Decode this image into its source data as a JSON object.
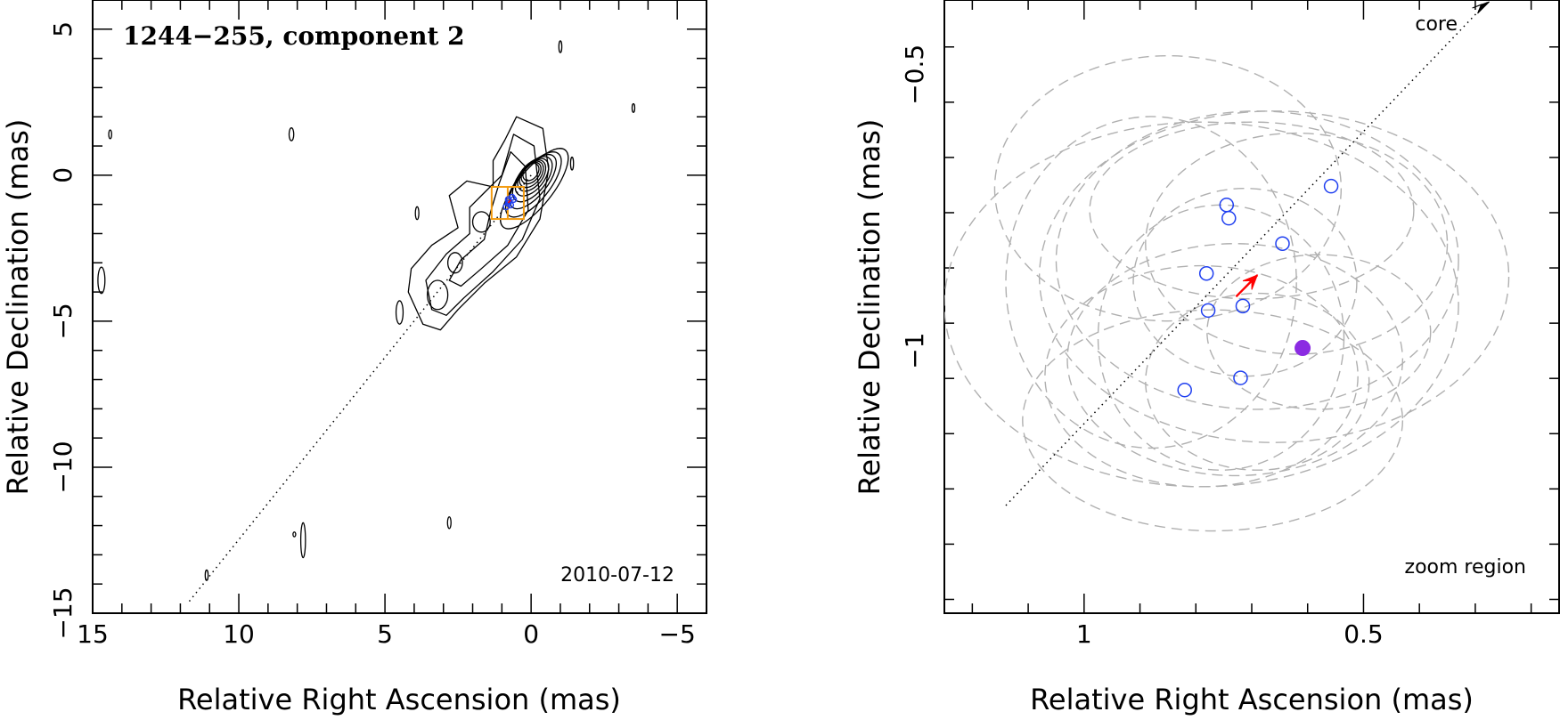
{
  "colors": {
    "contour": "#000000",
    "zoom_box": "#f39c12",
    "jet_marker": "#1f3ff0",
    "selected_marker": "#8b2be2",
    "arrow": "#ff0000",
    "ellipse": "#b0b0b0"
  },
  "chart_data": [
    {
      "type": "contour",
      "title": "1244−255, component 2",
      "xlabel": "Relative Right Ascension (mas)",
      "ylabel": "Relative Declination (mas)",
      "xlim": [
        15,
        -6
      ],
      "ylim": [
        -15,
        6
      ],
      "xticks": [
        15,
        10,
        5,
        0,
        -5
      ],
      "xtick_labels": [
        "15",
        "10",
        "5",
        "0",
        "−5"
      ],
      "yticks": [
        5,
        0,
        -5,
        -10,
        -15
      ],
      "ytick_labels": [
        "5",
        "0",
        "−5",
        "−10",
        "−15"
      ],
      "annotation": "2010-07-12",
      "core": [
        0,
        0
      ],
      "jet_line": {
        "from": [
          0,
          0
        ],
        "to": [
          11.7,
          -14.6
        ]
      },
      "zoom_box": {
        "ra": [
          0.25,
          1.35
        ],
        "dec": [
          -1.5,
          -0.4
        ]
      },
      "islands": [
        {
          "ra": 14.7,
          "dec": -3.6,
          "a": 0.12,
          "b": 0.45
        },
        {
          "ra": 14.4,
          "dec": 1.4,
          "a": 0.05,
          "b": 0.15
        },
        {
          "ra": 8.2,
          "dec": 1.4,
          "a": 0.08,
          "b": 0.22
        },
        {
          "ra": 3.9,
          "dec": -1.3,
          "a": 0.06,
          "b": 0.22
        },
        {
          "ra": 4.5,
          "dec": -4.7,
          "a": 0.12,
          "b": 0.4
        },
        {
          "ra": -1.0,
          "dec": 4.4,
          "a": 0.05,
          "b": 0.2
        },
        {
          "ra": -1.4,
          "dec": 0.4,
          "a": 0.05,
          "b": 0.22
        },
        {
          "ra": -3.5,
          "dec": 2.3,
          "a": 0.04,
          "b": 0.15
        },
        {
          "ra": 7.8,
          "dec": -12.5,
          "a": 0.08,
          "b": 0.6
        },
        {
          "ra": 8.1,
          "dec": -12.3,
          "a": 0.03,
          "b": 0.08
        },
        {
          "ra": 2.8,
          "dec": -11.9,
          "a": 0.06,
          "b": 0.2
        },
        {
          "ra": 11.1,
          "dec": -13.7,
          "a": 0.05,
          "b": 0.18
        }
      ],
      "markers": [
        {
          "ra": 0.76,
          "dec": -0.89
        },
        {
          "ra": 0.78,
          "dec": -0.97
        },
        {
          "ra": 0.65,
          "dec": -0.76
        },
        {
          "ra": 0.85,
          "dec": -1.08
        },
        {
          "ra": 0.7,
          "dec": -1.02
        },
        {
          "ra": 0.6,
          "dec": -0.83
        },
        {
          "ra": 0.78,
          "dec": -0.83
        }
      ]
    },
    {
      "type": "scatter",
      "xlabel": "Relative Right Ascension (mas)",
      "ylabel": "Relative Declination (mas)",
      "xlim": [
        1.25,
        0.15
      ],
      "ylim": [
        -1.475,
        -0.365
      ],
      "xticks": [
        1,
        0.5
      ],
      "xtick_labels": [
        "1",
        "0.5"
      ],
      "yticks": [
        -0.5,
        -1
      ],
      "ytick_labels": [
        "−0.5",
        "−1"
      ],
      "annotation": "zoom region",
      "core_label": "core",
      "jet_line": {
        "from": [
          1.14,
          -1.28
        ],
        "to": [
          0.275,
          -0.365
        ]
      },
      "circles": [
        {
          "ra": 0.745,
          "dec": -0.736
        },
        {
          "ra": 0.741,
          "dec": -0.76
        },
        {
          "ra": 0.645,
          "dec": -0.806
        },
        {
          "ra": 0.558,
          "dec": -0.702
        },
        {
          "ra": 0.781,
          "dec": -0.86
        },
        {
          "ra": 0.778,
          "dec": -0.927
        },
        {
          "ra": 0.716,
          "dec": -0.919
        },
        {
          "ra": 0.72,
          "dec": -1.049
        },
        {
          "ra": 0.82,
          "dec": -1.071
        }
      ],
      "selected_point": {
        "ra": 0.609,
        "dec": -0.995
      },
      "velocity_arrow": {
        "from": [
          0.728,
          -0.902
        ],
        "to": [
          0.69,
          -0.863
        ]
      },
      "error_ellipses": [
        {
          "ra": 0.62,
          "dec": -0.806,
          "rx": 0.27,
          "ry": 0.2
        },
        {
          "ra": 0.69,
          "dec": -0.836,
          "rx": 0.36,
          "ry": 0.27
        },
        {
          "ra": 0.712,
          "dec": -0.876,
          "rx": 0.2,
          "ry": 0.17
        },
        {
          "ra": 0.85,
          "dec": -0.706,
          "rx": 0.31,
          "ry": 0.24
        },
        {
          "ra": 0.7,
          "dec": -0.746,
          "rx": 0.29,
          "ry": 0.16
        },
        {
          "ra": 0.79,
          "dec": -0.916,
          "rx": 0.46,
          "ry": 0.33
        },
        {
          "ra": 0.66,
          "dec": -0.866,
          "rx": 0.42,
          "ry": 0.3
        },
        {
          "ra": 0.755,
          "dec": -0.976,
          "rx": 0.22,
          "ry": 0.24
        },
        {
          "ra": 0.73,
          "dec": -1.016,
          "rx": 0.3,
          "ry": 0.21
        },
        {
          "ra": 0.69,
          "dec": -1.056,
          "rx": 0.2,
          "ry": 0.16
        },
        {
          "ra": 0.79,
          "dec": -1.046,
          "rx": 0.28,
          "ry": 0.2
        },
        {
          "ra": 0.58,
          "dec": -0.966,
          "rx": 0.2,
          "ry": 0.14
        },
        {
          "ra": 0.77,
          "dec": -1.126,
          "rx": 0.34,
          "ry": 0.2
        },
        {
          "ra": 0.88,
          "dec": -0.876,
          "rx": 0.26,
          "ry": 0.3
        }
      ]
    }
  ]
}
